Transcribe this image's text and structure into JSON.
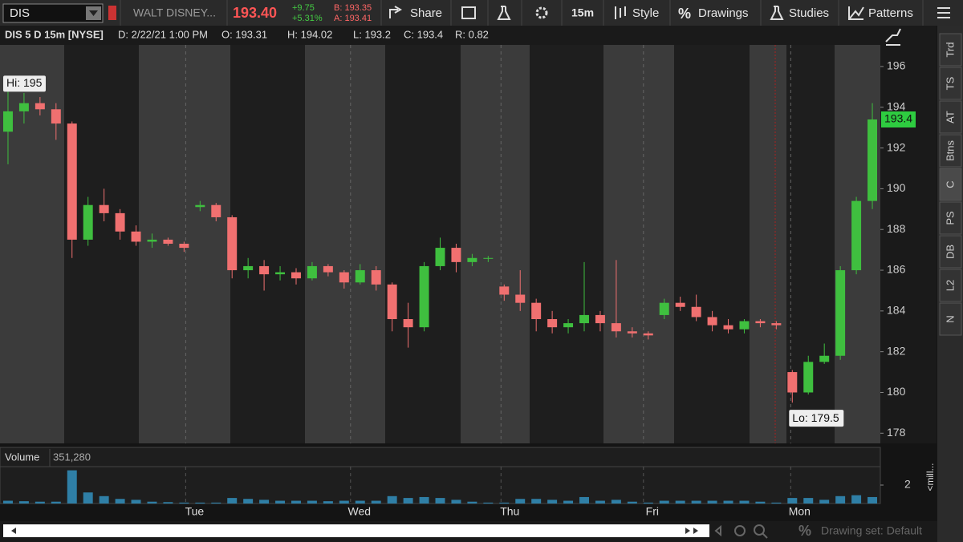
{
  "toolbar": {
    "symbol": "DIS",
    "company": "WALT DISNEY...",
    "last": "193.40",
    "change": "+9.75",
    "change_pct": "+5.31%",
    "bid": "B: 193.35",
    "ask": "A: 193.41",
    "share": "Share",
    "timeframe": "15m",
    "style": "Style",
    "drawings": "Drawings",
    "studies": "Studies",
    "patterns": "Patterns"
  },
  "info_bar": {
    "title": "DIS 5 D 15m [NYSE]",
    "date": "D: 2/22/21 1:00 PM",
    "open": "O: 193.31",
    "high": "H: 194.02",
    "low": "L: 193.2",
    "close": "C: 193.4",
    "range": "R: 0.82"
  },
  "sidebar_tabs": [
    "Trd",
    "TS",
    "AT",
    "Btns",
    "C",
    "PS",
    "DB",
    "L2",
    "N"
  ],
  "footer": {
    "drawing_set": "Drawing set: Default"
  },
  "chart_data": {
    "type": "candlestick",
    "up_color": "#3fbf3f",
    "down_color": "#f07070",
    "hi_label": "Hi: 195",
    "lo_label": "Lo: 179.5",
    "last_price_label": "193.4",
    "x": [
      0,
      1,
      2,
      3,
      4,
      5,
      6,
      7,
      8,
      9,
      10,
      11,
      12,
      13,
      14,
      15,
      16,
      17,
      18,
      19,
      20,
      21,
      22,
      23,
      24,
      25,
      26,
      27,
      28,
      29,
      30,
      31,
      32,
      33,
      34,
      35,
      36,
      37,
      38,
      39,
      40,
      41,
      42,
      43,
      44,
      45,
      46,
      47,
      48,
      49,
      50,
      51,
      52,
      53,
      54
    ],
    "open": [
      192.8,
      193.8,
      194.2,
      193.9,
      193.2,
      187.5,
      189.2,
      188.8,
      187.9,
      187.4,
      187.5,
      187.3,
      189.1,
      189.2,
      188.6,
      186.0,
      186.2,
      185.8,
      185.9,
      185.6,
      186.2,
      185.9,
      185.4,
      186.0,
      185.3,
      183.6,
      183.2,
      186.2,
      187.1,
      186.4,
      186.6,
      185.2,
      184.8,
      184.4,
      183.6,
      183.2,
      183.4,
      183.8,
      183.4,
      183.0,
      182.9,
      183.8,
      184.4,
      184.2,
      183.7,
      183.3,
      183.1,
      183.5,
      183.4,
      181.0,
      180.0,
      181.5,
      181.8,
      186.0,
      189.4
    ],
    "high": [
      195,
      194.7,
      194.5,
      194.2,
      193.3,
      189.6,
      190.0,
      189.0,
      188.2,
      187.8,
      187.6,
      187.4,
      189.4,
      189.3,
      188.7,
      186.6,
      186.5,
      186.2,
      186.1,
      186.4,
      186.3,
      186.0,
      186.3,
      186.2,
      185.4,
      184.4,
      186.4,
      187.6,
      187.3,
      186.8,
      186.7,
      185.3,
      186.0,
      184.6,
      184.0,
      183.6,
      186.4,
      184.0,
      186.5,
      183.2,
      183.0,
      184.6,
      184.7,
      184.8,
      184.0,
      183.6,
      183.6,
      183.6,
      183.5,
      181.1,
      181.8,
      182.4,
      186.2,
      189.6,
      194.2
    ],
    "low": [
      191.2,
      193.2,
      193.6,
      192.4,
      186.6,
      187.2,
      188.4,
      187.5,
      187.2,
      187.1,
      187.2,
      186.9,
      188.9,
      188.4,
      185.6,
      185.6,
      185.0,
      185.5,
      185.3,
      185.5,
      185.7,
      185.1,
      185.3,
      185.0,
      183.0,
      182.2,
      183.0,
      186.0,
      185.9,
      186.2,
      186.4,
      184.5,
      184.0,
      183.0,
      182.9,
      182.9,
      183.0,
      183.0,
      182.7,
      182.7,
      182.6,
      183.6,
      184.0,
      183.5,
      183.0,
      182.9,
      182.9,
      183.2,
      183.1,
      179.5,
      179.9,
      181.4,
      181.6,
      185.8,
      189.0
    ],
    "close": [
      193.8,
      194.2,
      193.9,
      193.2,
      187.5,
      189.2,
      188.8,
      187.9,
      187.4,
      187.5,
      187.3,
      187.1,
      189.2,
      188.6,
      186.0,
      186.2,
      185.8,
      185.9,
      185.6,
      186.2,
      185.9,
      185.4,
      186.0,
      185.3,
      183.6,
      183.2,
      186.2,
      187.1,
      186.4,
      186.6,
      186.6,
      184.8,
      184.4,
      183.6,
      183.2,
      183.4,
      183.8,
      183.4,
      183.0,
      182.9,
      182.8,
      184.4,
      184.2,
      183.7,
      183.3,
      183.1,
      183.5,
      183.4,
      183.3,
      180.0,
      181.5,
      181.8,
      186.0,
      189.4,
      193.4
    ],
    "volume": [
      0.3,
      0.25,
      0.2,
      0.2,
      3.6,
      1.2,
      0.8,
      0.5,
      0.4,
      0.2,
      0.15,
      0.1,
      0.1,
      0.1,
      0.6,
      0.5,
      0.4,
      0.3,
      0.3,
      0.3,
      0.25,
      0.3,
      0.3,
      0.3,
      0.8,
      0.6,
      0.7,
      0.6,
      0.4,
      0.2,
      0.1,
      0.1,
      0.5,
      0.5,
      0.4,
      0.3,
      0.7,
      0.3,
      0.4,
      0.2,
      0.1,
      0.3,
      0.3,
      0.3,
      0.3,
      0.3,
      0.3,
      0.2,
      0.1,
      0.6,
      0.6,
      0.4,
      0.8,
      0.9,
      0.7
    ],
    "volume_label": "Volume",
    "volume_value": "351,280",
    "volume_unit_label": "<mill...",
    "volume_ylim": [
      0,
      4
    ],
    "volume_yticks": [
      2
    ],
    "xlim": [
      0,
      55
    ],
    "xticks": [
      {
        "value": 11.6,
        "label": "Tue"
      },
      {
        "value": 21.9,
        "label": "Wed"
      },
      {
        "value": 31.3,
        "label": "Thu"
      },
      {
        "value": 40.2,
        "label": "Fri"
      },
      {
        "value": 49.4,
        "label": "Mon"
      }
    ],
    "ylim": [
      177.5,
      197.06
    ],
    "yticks": [
      178,
      180,
      182,
      184,
      186,
      188,
      190,
      192,
      194,
      196
    ],
    "xgrid": true
  }
}
